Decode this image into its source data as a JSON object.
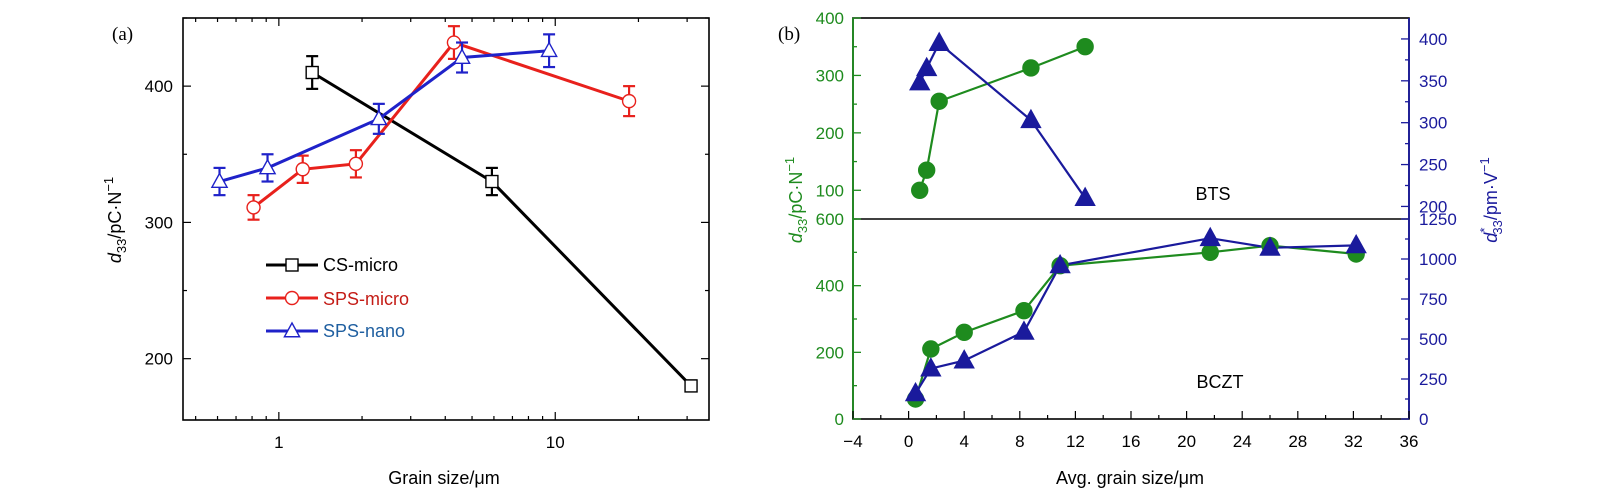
{
  "chart_data": [
    {
      "panel": "a",
      "panel_label": "(a)",
      "type": "line",
      "xlabel": "Grain size/μm",
      "ylabel": "d33/pC·N−1",
      "ylabel_main": "d",
      "ylabel_sub": "33",
      "ylabel_unit": "/pC·N",
      "ylabel_exp": "−1",
      "xscale": "log",
      "xlim": [
        0.45,
        36
      ],
      "ylim": [
        155,
        450
      ],
      "xticks": [
        1,
        10
      ],
      "xtick_labels": [
        "1",
        "10"
      ],
      "yticks": [
        200,
        300,
        400
      ],
      "ytick_labels": [
        "200",
        "300",
        "400"
      ],
      "legend_position": "center-left",
      "series": [
        {
          "name": "CS-micro",
          "color": "#000000",
          "marker": "square",
          "x": [
            1.32,
            5.9,
            31.0
          ],
          "y": [
            410,
            330,
            180
          ],
          "yerr": [
            12,
            10,
            4
          ]
        },
        {
          "name": "SPS-micro",
          "color": "#e8211c",
          "marker": "circle",
          "x": [
            0.81,
            1.22,
            1.9,
            4.3,
            18.5
          ],
          "y": [
            311,
            339,
            343,
            432,
            389
          ],
          "yerr": [
            9,
            10,
            10,
            12,
            11
          ]
        },
        {
          "name": "SPS-nano",
          "color": "#1f22c9",
          "marker": "triangle",
          "x": [
            0.61,
            0.91,
            2.3,
            4.6,
            9.5
          ],
          "y": [
            330,
            340,
            376,
            421,
            426
          ],
          "yerr": [
            10,
            10,
            11,
            11,
            12
          ]
        }
      ]
    },
    {
      "panel": "b",
      "panel_label": "(b)",
      "type": "scatter",
      "xlabel": "Avg. grain size/μm",
      "xlim": [
        -4,
        36
      ],
      "xticks": [
        -4,
        0,
        4,
        8,
        12,
        16,
        20,
        24,
        28,
        32,
        36
      ],
      "xtick_labels": [
        "−4",
        "0",
        "4",
        "8",
        "12",
        "16",
        "20",
        "24",
        "28",
        "32",
        "36"
      ],
      "ylabel_left": "d33/pC·N−1",
      "ylabel_left_main": "d",
      "ylabel_left_sub": "33",
      "ylabel_left_unit": "/pC·N",
      "ylabel_left_exp": "−1",
      "ylabel_right": "d*33/pm·V−1",
      "ylabel_right_main": "d",
      "ylabel_right_sup": "*",
      "ylabel_right_sub": "33",
      "ylabel_right_unit": "/pm·V",
      "ylabel_right_exp": "−1",
      "left_color": "#1e8b1e",
      "right_color": "#1a1a9c",
      "subpanels": [
        {
          "label": "BTS",
          "ylim_left": [
            50,
            400
          ],
          "yticks_left": [
            100,
            200,
            300,
            400
          ],
          "ytick_labels_left": [
            "100",
            "200",
            "300",
            "400"
          ],
          "ylim_right": [
            185,
            425
          ],
          "yticks_right": [
            200,
            250,
            300,
            350,
            400
          ],
          "ytick_labels_right": [
            "200",
            "250",
            "300",
            "350",
            "400"
          ],
          "series": [
            {
              "name": "d33",
              "axis": "left",
              "color": "#1e8b1e",
              "marker": "circle",
              "x": [
                0.8,
                1.3,
                2.2,
                8.8,
                12.7
              ],
              "y": [
                100,
                135,
                255,
                313,
                350
              ]
            },
            {
              "name": "d33*",
              "axis": "right",
              "color": "#1a1a9c",
              "marker": "triangle",
              "x": [
                0.8,
                1.3,
                2.2,
                8.8,
                12.7
              ],
              "y": [
                348,
                365,
                395,
                303,
                210
              ]
            }
          ]
        },
        {
          "label": "BCZT",
          "ylim_left": [
            0,
            600
          ],
          "yticks_left": [
            0,
            200,
            400,
            600
          ],
          "ytick_labels_left": [
            "0",
            "200",
            "400",
            "600"
          ],
          "ylim_right": [
            0,
            1250
          ],
          "yticks_right": [
            0,
            250,
            500,
            750,
            1000,
            1250
          ],
          "ytick_labels_right": [
            "0",
            "250",
            "500",
            "750",
            "1000",
            "1250"
          ],
          "series": [
            {
              "name": "d33",
              "axis": "left",
              "color": "#1e8b1e",
              "marker": "circle",
              "x": [
                0.5,
                1.6,
                4.0,
                8.3,
                10.9,
                21.7,
                26.0,
                32.2
              ],
              "y": [
                60,
                210,
                260,
                325,
                460,
                500,
                520,
                495
              ]
            },
            {
              "name": "d33*",
              "axis": "right",
              "color": "#1a1a9c",
              "marker": "triangle",
              "x": [
                0.5,
                1.6,
                4.0,
                8.3,
                10.9,
                21.7,
                26.0,
                32.2
              ],
              "y": [
                160,
                315,
                365,
                545,
                960,
                1130,
                1070,
                1085
              ]
            }
          ]
        }
      ]
    }
  ]
}
